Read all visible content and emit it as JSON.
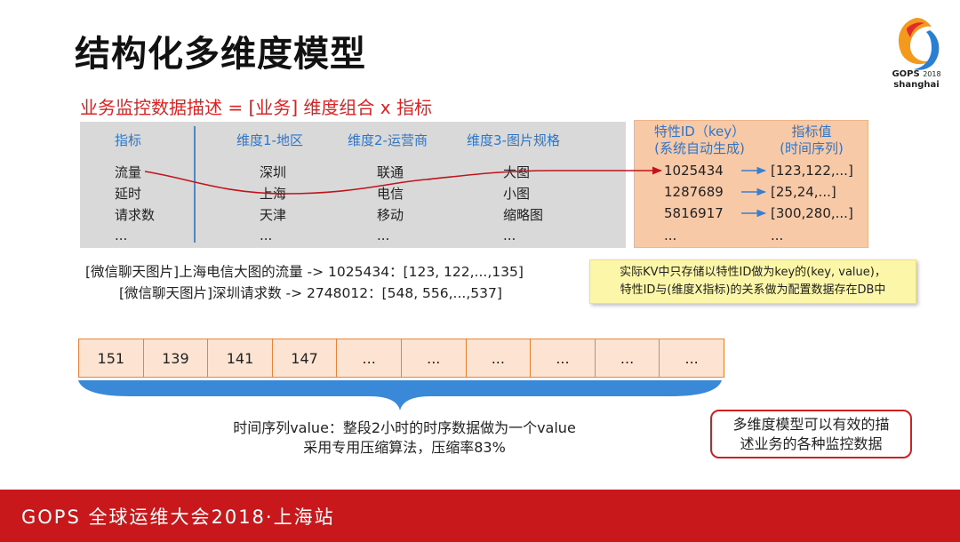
{
  "title": "结构化多维度模型",
  "logo": {
    "brand": "GOPS",
    "year": "2018",
    "city": "shanghai"
  },
  "subtitle": "业务监控数据描述 = [业务] 维度组合 x 指标",
  "table": {
    "headers": [
      "指标",
      "维度1-地区",
      "维度2-运营商",
      "维度3-图片规格"
    ],
    "rows": [
      [
        "流量",
        "深圳",
        "联通",
        "大图"
      ],
      [
        "延时",
        "上海",
        "电信",
        "小图"
      ],
      [
        "请求数",
        "天津",
        "移动",
        "缩略图"
      ],
      [
        "...",
        "...",
        "...",
        "..."
      ]
    ]
  },
  "kv": {
    "key_header": [
      "特性ID（key）",
      "(系统自动生成)"
    ],
    "value_header": [
      "指标值",
      "(时间序列)"
    ],
    "rows": [
      {
        "key": "1025434",
        "value": "[123,122,...]"
      },
      {
        "key": "1287689",
        "value": "[25,24,...]"
      },
      {
        "key": "5816917",
        "value": "[300,280,...]"
      },
      {
        "key": "...",
        "value": "..."
      }
    ]
  },
  "examples": [
    "[微信聊天图片]上海电信大图的流量 -> 1025434：[123, 122,...,135]",
    "[微信聊天图片]深圳请求数 -> 2748012：[548, 556,...,537]"
  ],
  "note": [
    "实际KV中只存储以特性ID做为key的(key, value)，",
    "特性ID与(维度X指标)的关系做为配置数据存在DB中"
  ],
  "series_cells": [
    "151",
    "139",
    "141",
    "147",
    "...",
    "...",
    "...",
    "...",
    "...",
    "..."
  ],
  "caption": [
    "时间序列value：整段2小时的时序数据做为一个value",
    "采用专用压缩算法，压缩率83%"
  ],
  "callout": [
    "多维度模型可以有效的描",
    "述业务的各种监控数据"
  ],
  "footer": "GOPS 全球运维大会2018·上海站",
  "colors": {
    "footer_bg": "#c8181b",
    "accent_red": "#e02020",
    "header_blue": "#2e75c8",
    "kv_bg": "#f8c9a6",
    "note_bg": "#fbf6a8"
  }
}
